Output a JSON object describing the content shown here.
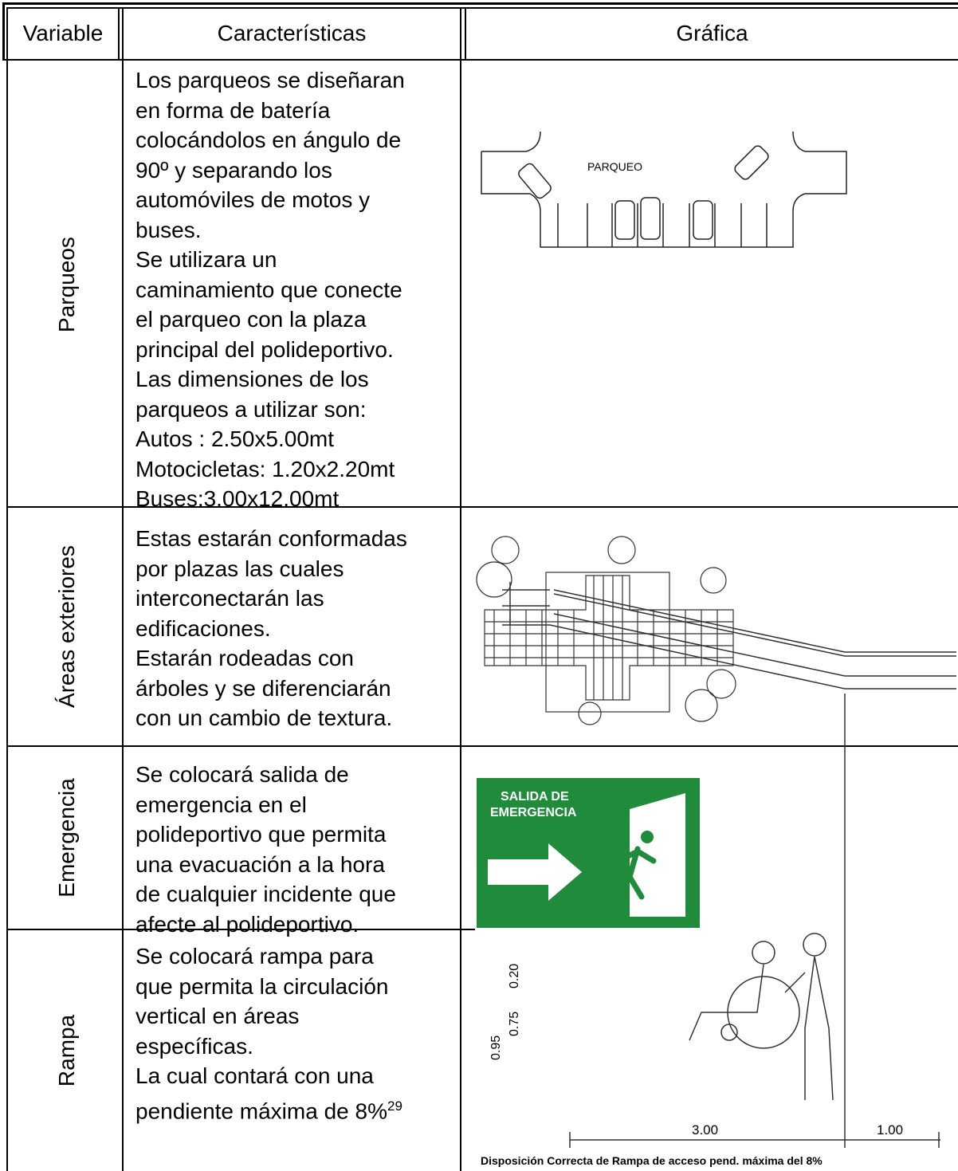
{
  "table": {
    "headers": [
      "Variable",
      "Características",
      "Gráfica"
    ],
    "rows": [
      {
        "variable": "Parqueos",
        "lines": [
          "Los parqueos se diseñaran",
          "en forma de batería",
          "colocándolos en ángulo de",
          "90º y  separando los",
          "automóviles de motos y",
          "buses.",
          "Se utilizara un",
          "caminamiento que conecte",
          "el parqueo con la plaza",
          "principal del polideportivo.",
          "Las dimensiones de los",
          "parqueos a utilizar son:",
          "Autos : 2.50x5.00mt",
          "Motocicletas: 1.20x2.20mt",
          "Buses:3.00x12.00mt"
        ]
      },
      {
        "variable": "Áreas exteriores",
        "lines": [
          "Estas estarán conformadas",
          "por plazas las cuales",
          "interconectarán las",
          "edificaciones.",
          "Estarán rodeadas con",
          "árboles y se diferenciarán",
          "con un cambio de textura."
        ]
      },
      {
        "variable": "Emergencia",
        "lines": [
          "Se colocará salida de",
          "emergencia en el",
          "polideportivo que permita",
          "una evacuación a la hora",
          "de cualquier incidente que",
          "afecte al polideportivo."
        ]
      },
      {
        "variable": "Rampa",
        "lines": [
          "Se colocará rampa para",
          "que permita la circulación",
          "vertical en áreas",
          "específicas.",
          "La cual contará con una",
          "pendiente máxima de 8%"
        ],
        "footnote": "29"
      }
    ]
  },
  "graphics": {
    "parking_label": "PARQUEO",
    "exit_sign": [
      "SALIDA DE",
      "EMERGENCIA"
    ],
    "ramp": {
      "dims": [
        "0.95",
        "0.75",
        "0.20",
        "3.00",
        "1.00"
      ],
      "caption": "Disposición Correcta de Rampa de acceso pend. máxima del 8%"
    }
  }
}
